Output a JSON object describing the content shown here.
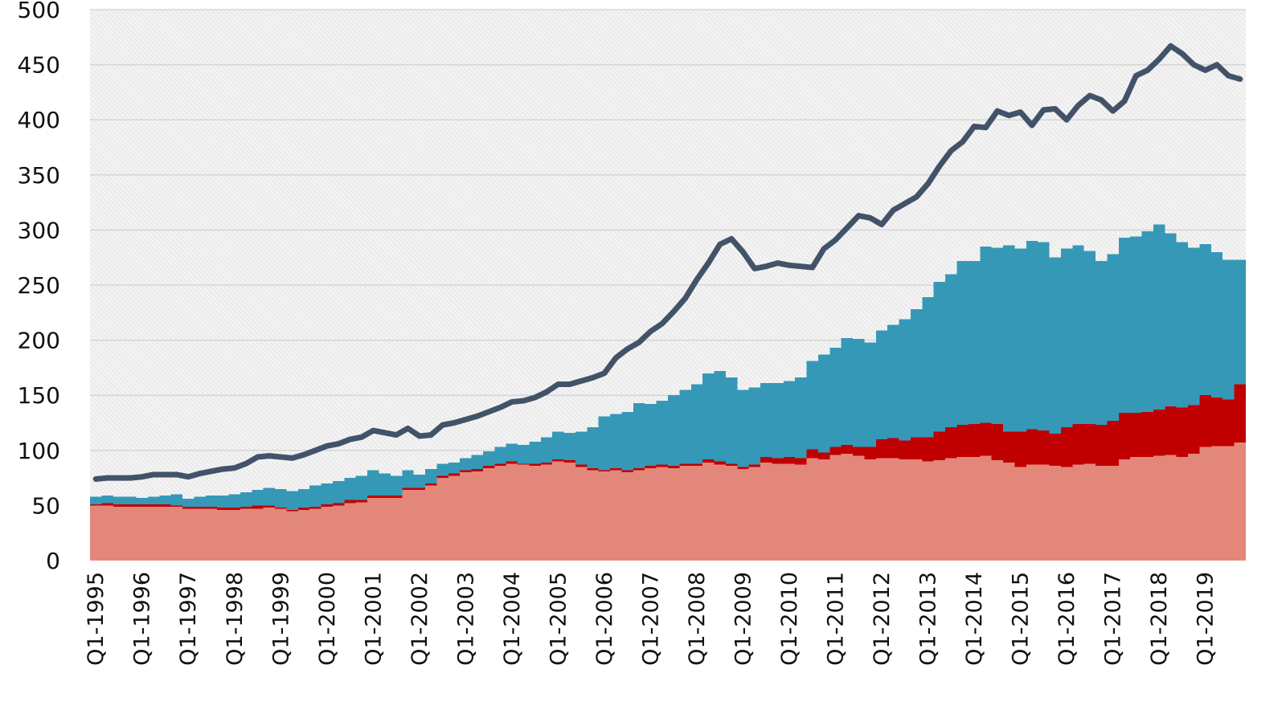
{
  "chart_data": {
    "type": "area",
    "stacked": true,
    "title": "",
    "xlabel": "",
    "ylabel": "",
    "ylim": [
      0,
      500
    ],
    "yticks": [
      0,
      50,
      100,
      150,
      200,
      250,
      300,
      350,
      400,
      450,
      500
    ],
    "grid": true,
    "legend": "none",
    "x_tick_labels": [
      "Q1-1995",
      "Q1-1996",
      "Q1-1997",
      "Q1-1998",
      "Q1-1999",
      "Q1-2000",
      "Q1-2001",
      "Q1-2002",
      "Q1-2003",
      "Q1-2004",
      "Q1-2005",
      "Q1-2006",
      "Q1-2007",
      "Q1-2008",
      "Q1-2009",
      "Q1-2010",
      "Q1-2011",
      "Q1-2012",
      "Q1-2013",
      "Q1-2014",
      "Q1-2015",
      "Q1-2016",
      "Q1-2017",
      "Q1-2018",
      "Q1-2019"
    ],
    "x_range": [
      "Q1-1995",
      "Q4-2019"
    ],
    "stack_series": [
      {
        "color": "#e3877a",
        "values": [
          50,
          50,
          49,
          49,
          49,
          49,
          49,
          49,
          47,
          47,
          47,
          46,
          46,
          47,
          47,
          48,
          47,
          45,
          46,
          47,
          49,
          50,
          52,
          53,
          57,
          57,
          57,
          64,
          64,
          68,
          75,
          77,
          80,
          81,
          84,
          86,
          88,
          87,
          86,
          87,
          90,
          89,
          85,
          82,
          81,
          82,
          80,
          82,
          84,
          85,
          84,
          86,
          86,
          89,
          87,
          86,
          83,
          85,
          89,
          88,
          88,
          87,
          93,
          92,
          96,
          97,
          95,
          92,
          93,
          93,
          92,
          92,
          90,
          91,
          93,
          94,
          94,
          95,
          91,
          89,
          85,
          87,
          87,
          86,
          85,
          87,
          88,
          86,
          86,
          92,
          94,
          94,
          95,
          96,
          94,
          97,
          103,
          104,
          104,
          107
        ]
      },
      {
        "color": "#c00000",
        "values": [
          1,
          2,
          2,
          2,
          2,
          2,
          2,
          1,
          2,
          2,
          2,
          2,
          2,
          2,
          3,
          2,
          1,
          1,
          2,
          2,
          2,
          2,
          3,
          2,
          2,
          2,
          2,
          2,
          2,
          2,
          2,
          2,
          2,
          2,
          2,
          2,
          2,
          1,
          2,
          2,
          2,
          2,
          2,
          2,
          1,
          2,
          2,
          2,
          2,
          2,
          2,
          2,
          2,
          3,
          3,
          2,
          2,
          2,
          5,
          5,
          6,
          6,
          8,
          6,
          7,
          8,
          8,
          11,
          17,
          18,
          17,
          20,
          22,
          26,
          28,
          29,
          30,
          30,
          33,
          28,
          32,
          32,
          31,
          29,
          36,
          37,
          36,
          37,
          41,
          42,
          40,
          41,
          42,
          44,
          45,
          44,
          47,
          44,
          42,
          53
        ]
      },
      {
        "color": "#3698b7",
        "values": [
          7,
          7,
          7,
          7,
          6,
          7,
          8,
          10,
          7,
          9,
          10,
          11,
          12,
          13,
          14,
          16,
          17,
          17,
          17,
          19,
          19,
          20,
          20,
          22,
          23,
          20,
          18,
          16,
          12,
          13,
          11,
          10,
          11,
          13,
          13,
          15,
          16,
          17,
          20,
          23,
          25,
          25,
          30,
          37,
          49,
          49,
          53,
          59,
          56,
          58,
          64,
          67,
          72,
          78,
          82,
          78,
          70,
          70,
          67,
          68,
          69,
          73,
          80,
          89,
          90,
          97,
          98,
          95,
          99,
          103,
          110,
          116,
          127,
          136,
          139,
          149,
          148,
          160,
          160,
          169,
          166,
          171,
          171,
          160,
          162,
          162,
          157,
          149,
          151,
          159,
          160,
          164,
          168,
          157,
          150,
          143,
          137,
          132,
          127,
          113
        ]
      }
    ],
    "line_series": [
      {
        "color": "#425369",
        "values": [
          74,
          75,
          75,
          75,
          76,
          78,
          78,
          78,
          76,
          79,
          81,
          83,
          84,
          88,
          94,
          95,
          94,
          93,
          96,
          100,
          104,
          106,
          110,
          112,
          118,
          116,
          114,
          120,
          113,
          114,
          123,
          125,
          128,
          131,
          135,
          139,
          144,
          145,
          148,
          153,
          160,
          160,
          163,
          166,
          170,
          184,
          192,
          198,
          208,
          215,
          226,
          238,
          255,
          270,
          287,
          292,
          280,
          265,
          267,
          270,
          268,
          267,
          266,
          283,
          291,
          302,
          313,
          311,
          305,
          318,
          324,
          330,
          342,
          358,
          372,
          380,
          394,
          393,
          408,
          404,
          407,
          395,
          409,
          410,
          400,
          413,
          422,
          418,
          408,
          417,
          440,
          445,
          455,
          467,
          460,
          450,
          445,
          450,
          440,
          437
        ]
      }
    ],
    "background": "light gray diagonal hatch"
  }
}
